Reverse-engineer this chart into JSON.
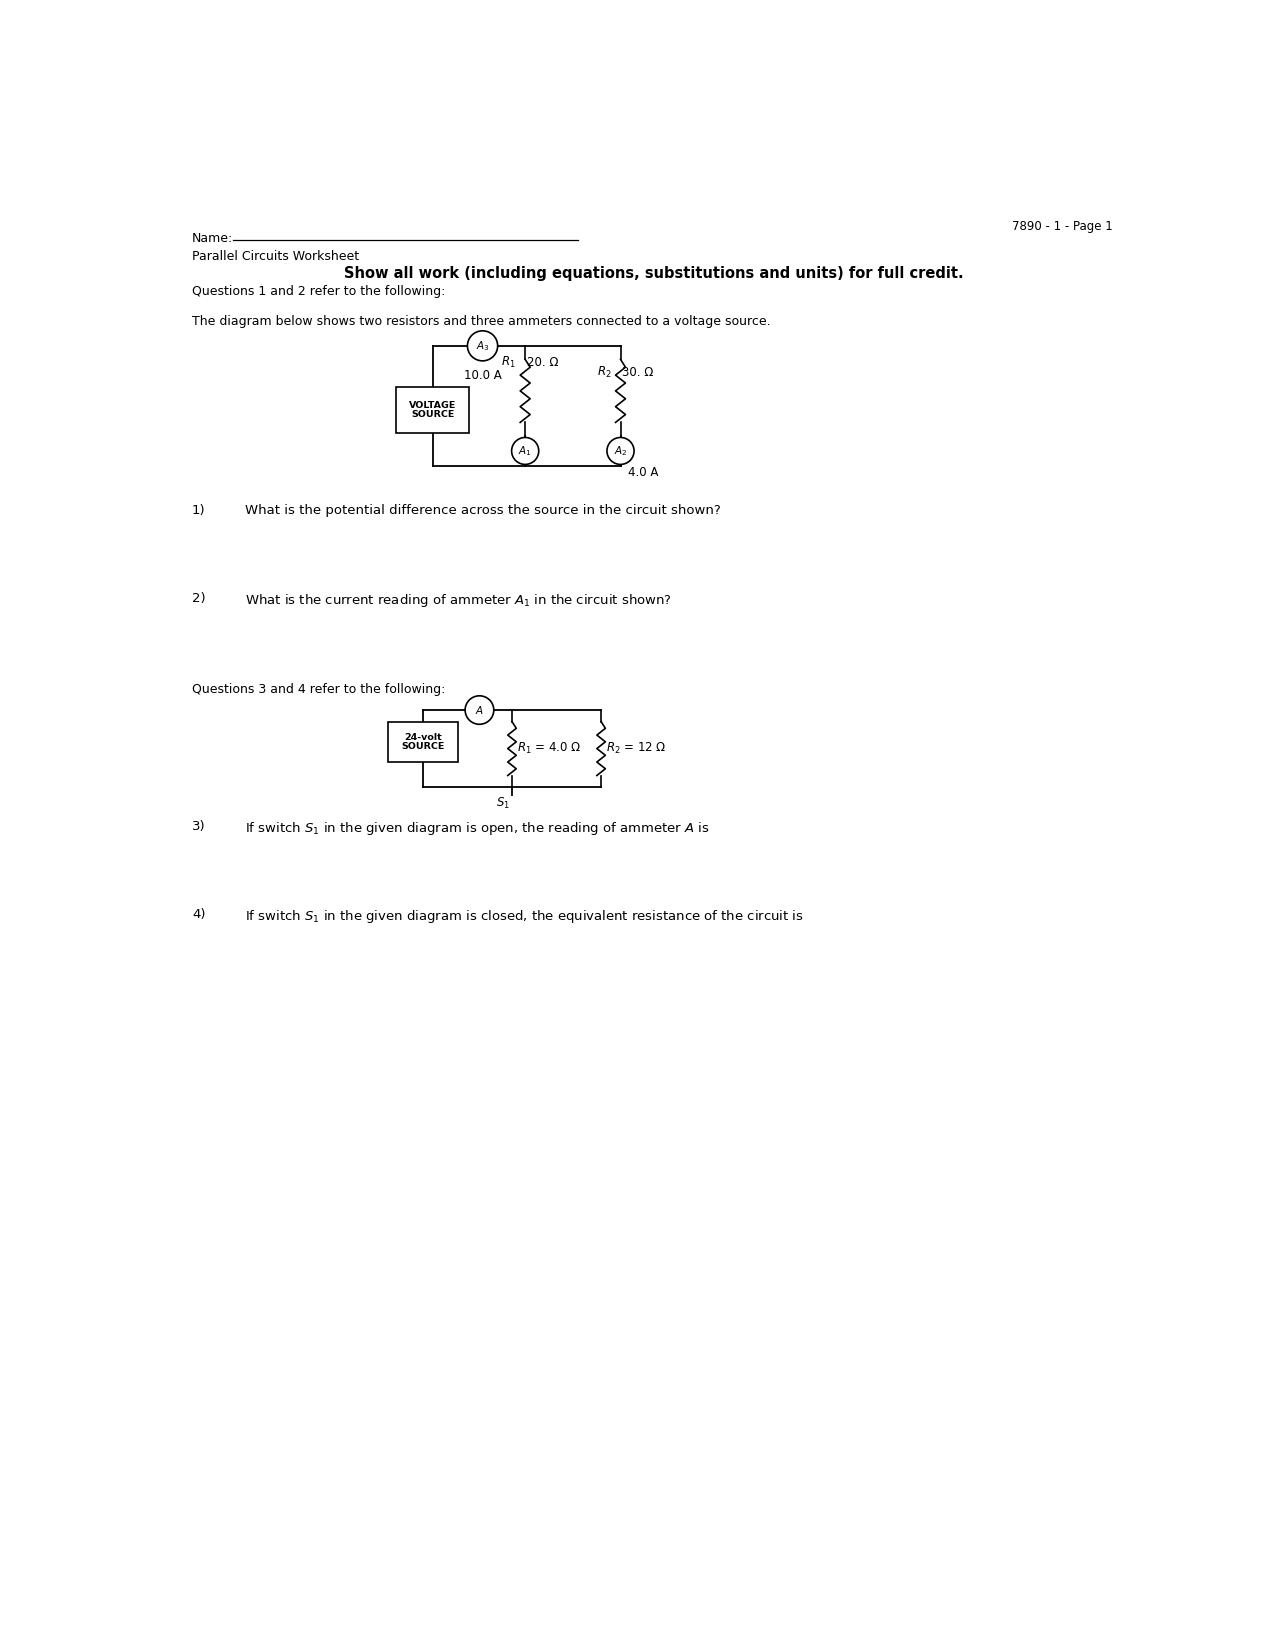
{
  "page_id": "7890 - 1 - Page 1",
  "name_label": "Name:",
  "worksheet_title": "Parallel Circuits Worksheet",
  "bold_instruction": "Show all work (including equations, substitutions and units) for full credit.",
  "q12_intro": "Questions 1 and 2 refer to the following:",
  "diagram1_desc": "The diagram below shows two resistors and three ammeters connected to a voltage source.",
  "q34_intro": "Questions 3 and 4 refer to the following:",
  "bg_color": "#ffffff",
  "text_color": "#000000"
}
